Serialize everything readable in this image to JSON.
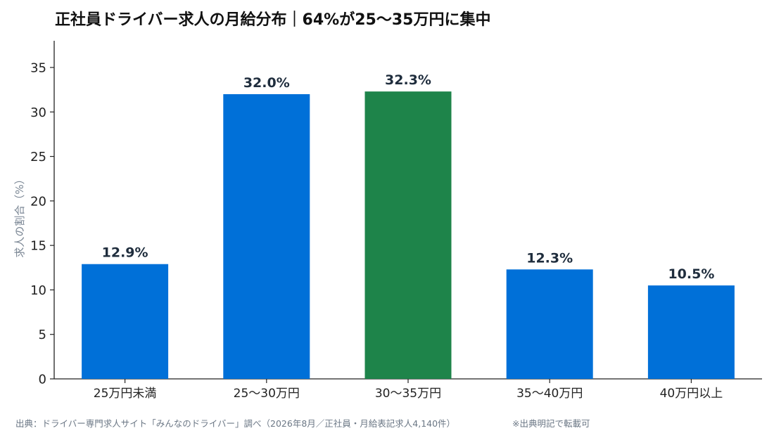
{
  "chart_data": {
    "type": "bar",
    "title": "正社員ドライバー求人の月給分布｜64%が25〜35万円に集中",
    "xlabel": "",
    "ylabel": "求人の割合（%）",
    "categories": [
      "25万円未満",
      "25〜30万円",
      "30〜35万円",
      "35〜40万円",
      "40万円以上"
    ],
    "values": [
      12.9,
      32.0,
      32.3,
      12.3,
      10.5
    ],
    "data_labels": [
      "12.9%",
      "32.0%",
      "32.3%",
      "12.3%",
      "10.5%"
    ],
    "highlight_index": 2,
    "ylim": [
      0,
      38
    ],
    "yticks": [
      0,
      5,
      10,
      15,
      20,
      25,
      30,
      35
    ],
    "grid": false,
    "legend": "none",
    "colors": {
      "bar": "#0070D8",
      "highlight": "#1E844A",
      "axis": "#222222",
      "label": "#1F2D3D"
    }
  },
  "footer": {
    "source": "出典：ドライバー専門求人サイト「みんなのドライバー」調べ（2026年8月／正社員・月給表記求人4,140件）",
    "note": "※出典明記で転載可"
  }
}
